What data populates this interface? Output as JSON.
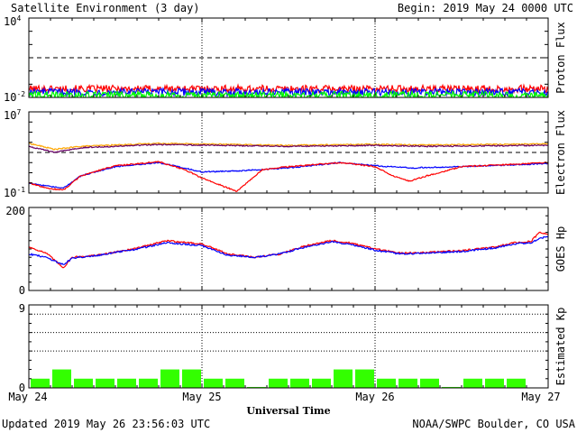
{
  "header": {
    "title": "Satellite Environment (3 day)",
    "begin": "Begin:  2019 May 24 0000 UTC"
  },
  "footer": {
    "updated": "Updated 2019 May 26 23:56:03 UTC",
    "credit": "NOAA/SWPC Boulder, CO USA",
    "xaxis_title": "Universal Time"
  },
  "xaxis": {
    "ticks": [
      "May 24",
      "May 25",
      "May 26",
      "May 27"
    ]
  },
  "colors": {
    "red": "#ff0000",
    "blue": "#0000ff",
    "green": "#00ff00",
    "orange": "#ffa500",
    "purple": "#660066",
    "kp_bar": "#33ff00"
  },
  "chart_data": [
    {
      "type": "line",
      "ylabel": "Proton Flux",
      "y_scale": "log",
      "ylim": [
        0.01,
        10000
      ],
      "y_ticks": [
        {
          "base": "10",
          "exp": "4"
        },
        {
          "base": "10",
          "exp": "-2"
        }
      ],
      "threshold": 10,
      "x_days": [
        0,
        3
      ],
      "series": [
        {
          "color": "#ff0000",
          "level": 0.045
        },
        {
          "color": "#0000ff",
          "level": 0.025
        },
        {
          "color": "#00ff00",
          "level": 0.015
        }
      ]
    },
    {
      "type": "line",
      "ylabel": "Electron Flux",
      "y_scale": "log",
      "ylim": [
        0.1,
        10000000
      ],
      "y_ticks": [
        {
          "base": "10",
          "exp": "7"
        },
        {
          "base": "10",
          "exp": "-1"
        }
      ],
      "threshold": 1000,
      "x_days": [
        0,
        3
      ],
      "series": [
        {
          "color": "#ffa500",
          "x": [
            0,
            0.15,
            0.3,
            0.75,
            1.5,
            2.0,
            2.3,
            3.0
          ],
          "y": [
            8000,
            2000,
            4000,
            8000,
            5000,
            6500,
            5500,
            7000
          ]
        },
        {
          "color": "#660066",
          "x": [
            0,
            0.15,
            0.3,
            0.75,
            1.5,
            2.0,
            2.3,
            3.0
          ],
          "y": [
            4000,
            1000,
            3000,
            6000,
            4000,
            5000,
            4000,
            5000
          ]
        },
        {
          "color": "#0000ff",
          "x": [
            0,
            0.1,
            0.2,
            0.3,
            0.5,
            0.75,
            1.0,
            1.2,
            1.5,
            1.8,
            2.0,
            2.2,
            2.5,
            3.0
          ],
          "y": [
            1,
            0.5,
            0.3,
            5,
            40,
            100,
            12,
            15,
            30,
            100,
            50,
            30,
            40,
            80
          ]
        },
        {
          "color": "#ff0000",
          "x": [
            0,
            0.1,
            0.2,
            0.3,
            0.5,
            0.75,
            0.9,
            1.0,
            1.2,
            1.35,
            1.5,
            1.8,
            2.0,
            2.1,
            2.2,
            2.3,
            2.5,
            3.0
          ],
          "y": [
            1,
            0.3,
            0.2,
            5,
            50,
            120,
            20,
            3,
            0.15,
            20,
            40,
            100,
            40,
            5,
            1.5,
            5,
            40,
            100
          ]
        }
      ]
    },
    {
      "type": "line",
      "ylabel": "GOES Hp",
      "ylim": [
        0,
        200
      ],
      "y_ticks": [
        "200",
        "0"
      ],
      "x_days": [
        0,
        3
      ],
      "series": [
        {
          "color": "#ff0000",
          "x": [
            0,
            0.1,
            0.2,
            0.25,
            0.4,
            0.6,
            0.8,
            1.0,
            1.15,
            1.3,
            1.45,
            1.6,
            1.75,
            1.85,
            2.0,
            2.15,
            2.3,
            2.5,
            2.7,
            2.8,
            2.9,
            2.95,
            3.0
          ],
          "y": [
            105,
            90,
            55,
            80,
            85,
            100,
            120,
            112,
            88,
            80,
            88,
            108,
            120,
            115,
            100,
            90,
            92,
            96,
            105,
            115,
            118,
            140,
            135
          ]
        },
        {
          "color": "#0000ff",
          "x": [
            0,
            0.1,
            0.2,
            0.25,
            0.4,
            0.6,
            0.8,
            1.0,
            1.15,
            1.3,
            1.45,
            1.6,
            1.75,
            1.85,
            2.0,
            2.15,
            2.3,
            2.5,
            2.7,
            2.8,
            2.9,
            2.95,
            3.0
          ],
          "y": [
            88,
            80,
            62,
            78,
            85,
            98,
            115,
            108,
            85,
            80,
            88,
            105,
            117,
            112,
            97,
            88,
            90,
            94,
            103,
            112,
            115,
            125,
            130
          ]
        }
      ]
    },
    {
      "type": "bar",
      "ylabel": "Estimated Kp",
      "ylim": [
        0,
        9
      ],
      "y_ticks": [
        "9",
        "0"
      ],
      "gridlines": [
        4,
        6,
        8
      ],
      "bar_width_days": 0.125,
      "values": [
        1,
        2,
        1,
        1,
        1,
        1,
        2,
        2,
        1,
        1,
        0.1,
        1,
        1,
        1,
        2,
        2,
        1,
        1,
        1,
        0.1,
        1,
        1,
        1,
        0
      ]
    }
  ]
}
